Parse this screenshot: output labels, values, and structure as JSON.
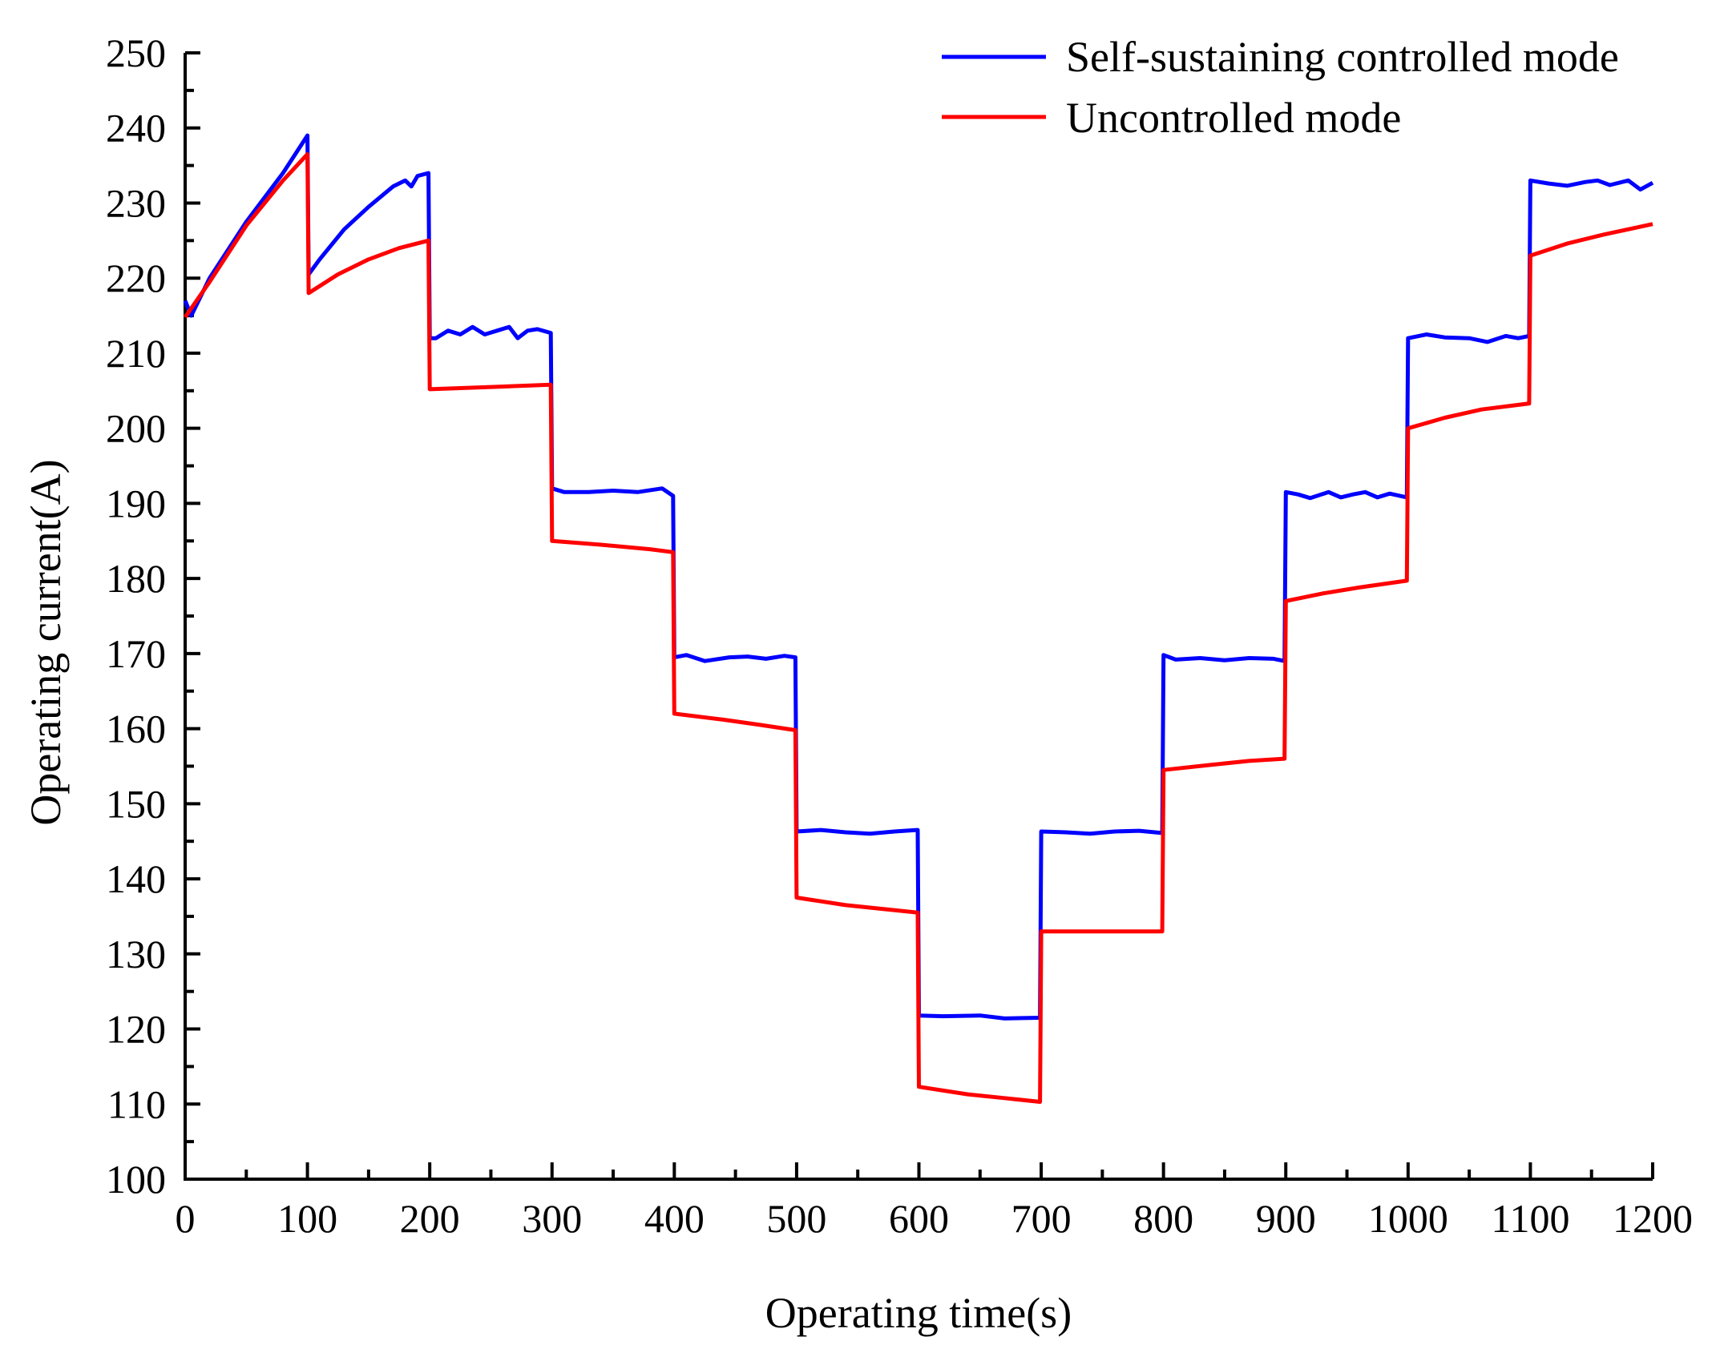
{
  "chart_data": {
    "type": "line",
    "title": "",
    "xlabel": "Operating time(s)",
    "ylabel": "Operating current(A)",
    "xlim": [
      0,
      1200
    ],
    "ylim": [
      100,
      250
    ],
    "x_ticks": [
      0,
      100,
      200,
      300,
      400,
      500,
      600,
      700,
      800,
      900,
      1000,
      1100,
      1200
    ],
    "x_tick_labels": [
      "0",
      "100",
      "200",
      "300",
      "400",
      "500",
      "600",
      "700",
      "800",
      "900",
      "1000",
      "1100",
      "1200"
    ],
    "y_ticks": [
      100,
      110,
      120,
      130,
      140,
      150,
      160,
      170,
      180,
      190,
      200,
      210,
      220,
      230,
      240,
      250
    ],
    "y_tick_labels": [
      "100",
      "110",
      "120",
      "130",
      "140",
      "150",
      "160",
      "170",
      "180",
      "190",
      "200",
      "210",
      "220",
      "230",
      "240",
      "250"
    ],
    "grid": false,
    "legend_position": "top-right",
    "series": [
      {
        "name": "Self-sustaining controlled mode",
        "color": "#0000ff",
        "points": [
          [
            0,
            217
          ],
          [
            5,
            215
          ],
          [
            20,
            220
          ],
          [
            50,
            227.5
          ],
          [
            80,
            234
          ],
          [
            100,
            239
          ],
          [
            101,
            220.5
          ],
          [
            110,
            222.5
          ],
          [
            130,
            226.5
          ],
          [
            150,
            229.5
          ],
          [
            170,
            232.2
          ],
          [
            180,
            233
          ],
          [
            185,
            232.2
          ],
          [
            190,
            233.6
          ],
          [
            199,
            234
          ],
          [
            200,
            212
          ],
          [
            205,
            212
          ],
          [
            215,
            213
          ],
          [
            225,
            212.5
          ],
          [
            235,
            213.5
          ],
          [
            245,
            212.5
          ],
          [
            255,
            213
          ],
          [
            265,
            213.5
          ],
          [
            272,
            212
          ],
          [
            280,
            213
          ],
          [
            288,
            213.2
          ],
          [
            299,
            212.7
          ],
          [
            300,
            192
          ],
          [
            310,
            191.5
          ],
          [
            330,
            191.5
          ],
          [
            350,
            191.7
          ],
          [
            370,
            191.5
          ],
          [
            390,
            192
          ],
          [
            399,
            191
          ],
          [
            400,
            169.5
          ],
          [
            410,
            169.8
          ],
          [
            425,
            169
          ],
          [
            445,
            169.5
          ],
          [
            460,
            169.6
          ],
          [
            475,
            169.3
          ],
          [
            490,
            169.7
          ],
          [
            499,
            169.5
          ],
          [
            500,
            146.3
          ],
          [
            520,
            146.5
          ],
          [
            540,
            146.2
          ],
          [
            560,
            146
          ],
          [
            580,
            146.3
          ],
          [
            599,
            146.5
          ],
          [
            600,
            121.8
          ],
          [
            620,
            121.7
          ],
          [
            650,
            121.8
          ],
          [
            670,
            121.4
          ],
          [
            699,
            121.5
          ],
          [
            700,
            146.3
          ],
          [
            720,
            146.2
          ],
          [
            740,
            146
          ],
          [
            760,
            146.3
          ],
          [
            780,
            146.4
          ],
          [
            799,
            146.1
          ],
          [
            800,
            169.8
          ],
          [
            810,
            169.2
          ],
          [
            830,
            169.4
          ],
          [
            850,
            169.1
          ],
          [
            870,
            169.4
          ],
          [
            890,
            169.3
          ],
          [
            899,
            169
          ],
          [
            900,
            191.5
          ],
          [
            910,
            191.2
          ],
          [
            920,
            190.7
          ],
          [
            935,
            191.5
          ],
          [
            945,
            190.8
          ],
          [
            955,
            191.2
          ],
          [
            965,
            191.5
          ],
          [
            975,
            190.8
          ],
          [
            985,
            191.3
          ],
          [
            999,
            190.8
          ],
          [
            1000,
            212
          ],
          [
            1015,
            212.5
          ],
          [
            1030,
            212.1
          ],
          [
            1050,
            212
          ],
          [
            1065,
            211.5
          ],
          [
            1080,
            212.3
          ],
          [
            1090,
            212
          ],
          [
            1099,
            212.3
          ],
          [
            1100,
            233
          ],
          [
            1115,
            232.6
          ],
          [
            1130,
            232.3
          ],
          [
            1145,
            232.8
          ],
          [
            1155,
            233
          ],
          [
            1165,
            232.4
          ],
          [
            1180,
            233
          ],
          [
            1190,
            231.8
          ],
          [
            1200,
            232.7
          ]
        ]
      },
      {
        "name": "Uncontrolled mode",
        "color": "#ff0000",
        "points": [
          [
            0,
            214.8
          ],
          [
            20,
            219.5
          ],
          [
            50,
            227
          ],
          [
            80,
            233
          ],
          [
            100,
            236.5
          ],
          [
            101,
            218
          ],
          [
            125,
            220.5
          ],
          [
            150,
            222.5
          ],
          [
            175,
            224
          ],
          [
            199,
            225
          ],
          [
            200,
            205.2
          ],
          [
            250,
            205.5
          ],
          [
            299,
            205.8
          ],
          [
            300,
            185
          ],
          [
            340,
            184.5
          ],
          [
            380,
            183.9
          ],
          [
            399,
            183.5
          ],
          [
            400,
            162
          ],
          [
            440,
            161.2
          ],
          [
            470,
            160.5
          ],
          [
            499,
            159.8
          ],
          [
            500,
            137.5
          ],
          [
            540,
            136.5
          ],
          [
            570,
            136
          ],
          [
            599,
            135.5
          ],
          [
            600,
            112.3
          ],
          [
            640,
            111.3
          ],
          [
            670,
            110.8
          ],
          [
            699,
            110.3
          ],
          [
            700,
            133
          ],
          [
            750,
            133
          ],
          [
            799,
            133
          ],
          [
            800,
            154.5
          ],
          [
            840,
            155.2
          ],
          [
            870,
            155.7
          ],
          [
            899,
            156
          ],
          [
            900,
            177
          ],
          [
            930,
            178
          ],
          [
            960,
            178.8
          ],
          [
            999,
            179.7
          ],
          [
            1000,
            200
          ],
          [
            1030,
            201.4
          ],
          [
            1060,
            202.5
          ],
          [
            1099,
            203.3
          ],
          [
            1100,
            223
          ],
          [
            1130,
            224.6
          ],
          [
            1160,
            225.8
          ],
          [
            1200,
            227.2
          ]
        ]
      }
    ]
  }
}
